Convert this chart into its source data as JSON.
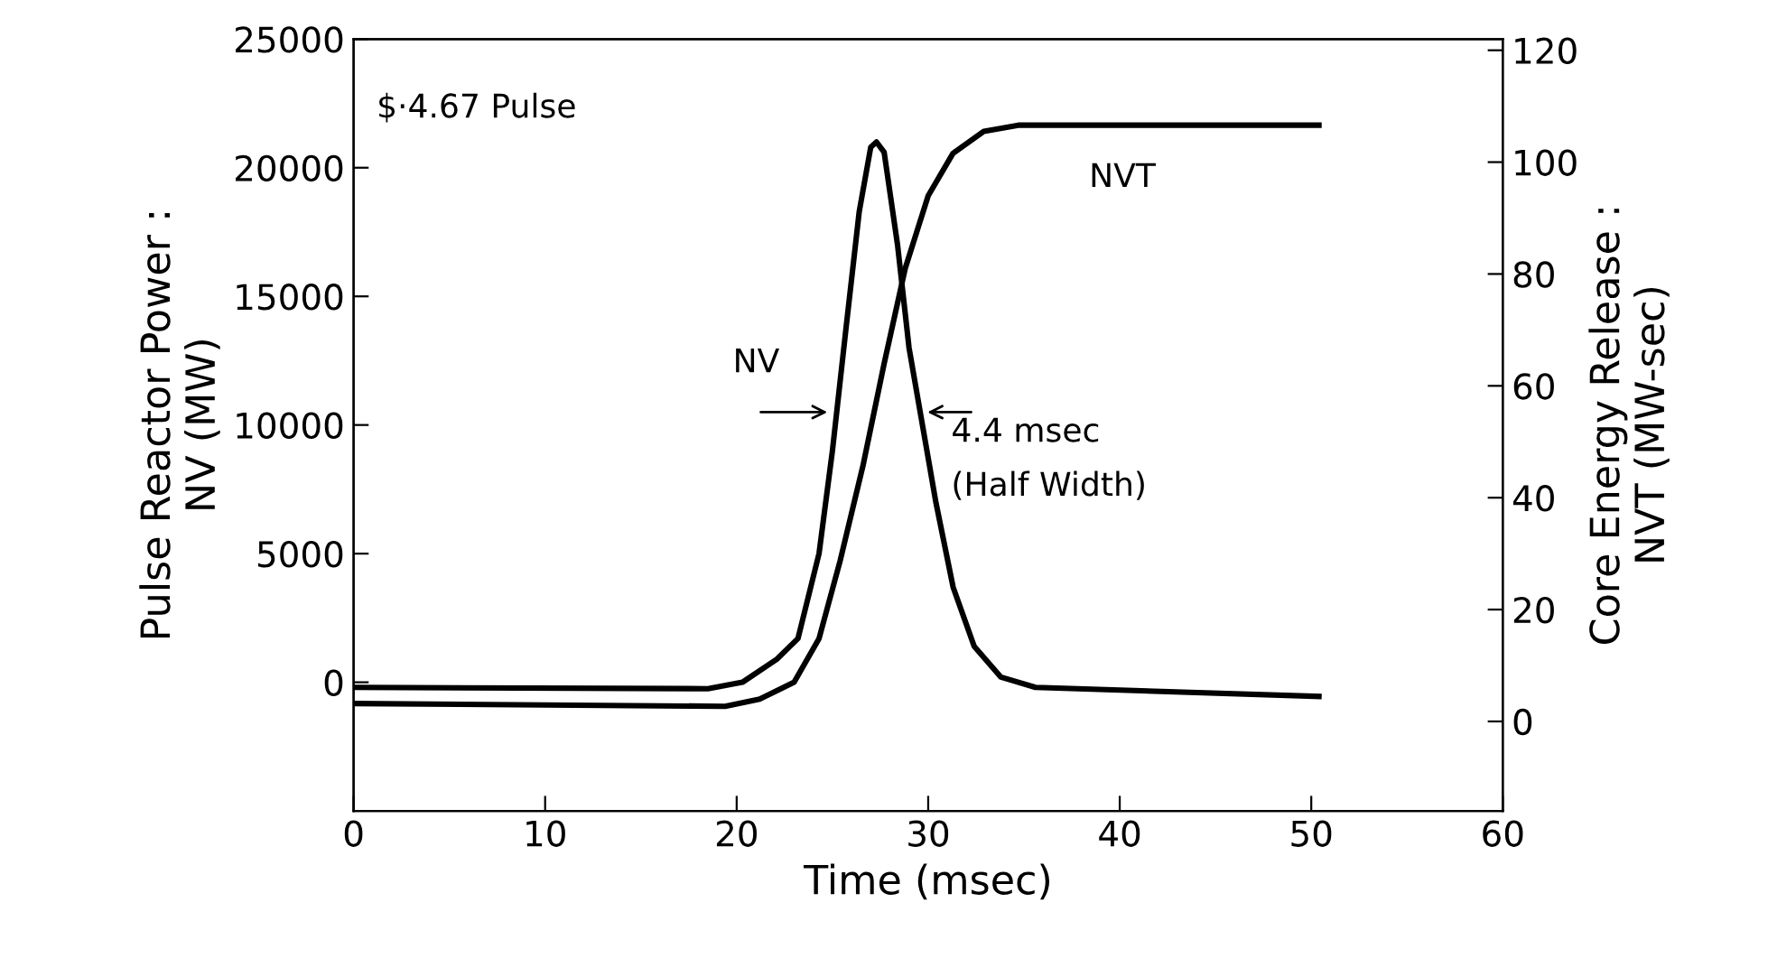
{
  "chart_data": {
    "type": "line",
    "xlabel": "Time (msec)",
    "ylabel": "Pulse Reactor Power :\nNV (MW)",
    "y2label": "Core Energy Release :\nNVT (MW-sec)",
    "annotations": [
      "$·4.67 Pulse",
      "NV",
      "NVT",
      "4.4 msec",
      "(Half Width)"
    ],
    "xlim": [
      0,
      60
    ],
    "xticks": [
      0,
      10,
      20,
      30,
      40,
      50,
      60
    ],
    "ylim": [
      -5000,
      25000
    ],
    "yticks": [
      0,
      5000,
      10000,
      15000,
      20000,
      25000
    ],
    "y2lim": [
      -16,
      122
    ],
    "y2ticks": [
      0,
      20,
      40,
      60,
      80,
      100,
      120
    ],
    "grid": false,
    "legend": false,
    "marker": "none",
    "line_style": "solid",
    "series": [
      {
        "color": "#000000",
        "x": [
          0,
          18.5,
          20.3,
          22.1,
          23.2,
          24.3,
          25.0,
          25.7,
          26.4,
          27.0,
          27.3,
          27.7,
          28.4,
          29.0,
          29.7,
          30.4,
          31.3,
          32.4,
          33.8,
          35.6,
          50.4
        ],
        "values": [
          -200,
          -250,
          0,
          900,
          1700,
          5000,
          9000,
          13700,
          18300,
          20800,
          21000,
          20600,
          17000,
          13000,
          10000,
          7000,
          3700,
          1400,
          200,
          -200,
          -550
        ]
      },
      {
        "color": "#000000",
        "axis": "y2",
        "x": [
          0,
          19.4,
          21.2,
          23.0,
          24.3,
          25.4,
          26.6,
          27.7,
          28.8,
          30.0,
          31.3,
          32.9,
          34.7,
          50.4
        ],
        "values": [
          3.2,
          2.7,
          4,
          7,
          14.8,
          28.7,
          45.8,
          64,
          81,
          94,
          101.6,
          105.5,
          106.6,
          106.6
        ]
      }
    ]
  }
}
